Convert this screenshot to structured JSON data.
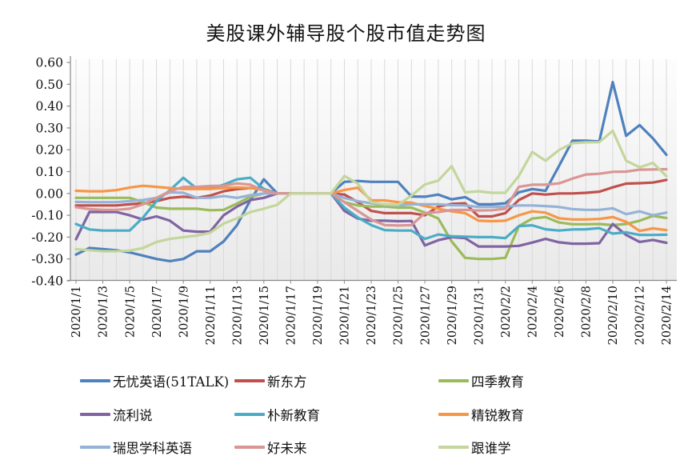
{
  "title": "美股课外辅导股个股市值走势图",
  "chart_data": {
    "type": "line",
    "title": "美股课外辅导股个股市值走势图",
    "xlabel": "",
    "ylabel": "",
    "ylim": [
      -0.4,
      0.6
    ],
    "y_tick_labels": [
      "0.60",
      "0.50",
      "0.40",
      "0.30",
      "0.20",
      "0.10",
      "0.00",
      "-0.10",
      "-0.20",
      "-0.30",
      "-0.40"
    ],
    "x_tick_labels": [
      "2020/1/1",
      "2020/1/3",
      "2020/1/5",
      "2020/1/7",
      "2020/1/9",
      "2020/1/11",
      "2020/1/13",
      "2020/1/15",
      "2020/1/17",
      "2020/1/19",
      "2020/1/21",
      "2020/1/23",
      "2020/1/25",
      "2020/1/27",
      "2020/1/29",
      "2020/1/31",
      "2020/2/2",
      "2020/2/4",
      "2020/2/6",
      "2020/2/8",
      "2020/2/10",
      "2020/2/12",
      "2020/2/14"
    ],
    "x": [
      "2020/1/1",
      "2020/1/2",
      "2020/1/3",
      "2020/1/4",
      "2020/1/5",
      "2020/1/6",
      "2020/1/7",
      "2020/1/8",
      "2020/1/9",
      "2020/1/10",
      "2020/1/11",
      "2020/1/12",
      "2020/1/13",
      "2020/1/14",
      "2020/1/15",
      "2020/1/16",
      "2020/1/17",
      "2020/1/18",
      "2020/1/19",
      "2020/1/20",
      "2020/1/21",
      "2020/1/22",
      "2020/1/23",
      "2020/1/24",
      "2020/1/25",
      "2020/1/26",
      "2020/1/27",
      "2020/1/28",
      "2020/1/29",
      "2020/1/30",
      "2020/1/31",
      "2020/2/1",
      "2020/2/2",
      "2020/2/3",
      "2020/2/4",
      "2020/2/5",
      "2020/2/6",
      "2020/2/7",
      "2020/2/8",
      "2020/2/9",
      "2020/2/10",
      "2020/2/11",
      "2020/2/12",
      "2020/2/13",
      "2020/2/14"
    ],
    "grid": "vertical-per-day",
    "legend_position": "bottom",
    "series": [
      {
        "name": "无忧英语(51TALK)",
        "color": "#4F81BD",
        "values": [
          -0.28,
          -0.25,
          -0.255,
          -0.26,
          -0.27,
          -0.285,
          -0.3,
          -0.31,
          -0.3,
          -0.265,
          -0.265,
          -0.22,
          -0.145,
          -0.03,
          0.065,
          0,
          0,
          0,
          0,
          0,
          0.053,
          0.057,
          0.053,
          0.053,
          0.053,
          -0.014,
          -0.015,
          -0.005,
          -0.027,
          -0.017,
          -0.05,
          -0.05,
          -0.045,
          0.005,
          0.02,
          0.012,
          0.126,
          0.242,
          0.242,
          0.238,
          0.51,
          0.264,
          0.313,
          0.252,
          0.177
        ]
      },
      {
        "name": "新东方",
        "color": "#C0504D",
        "values": [
          -0.055,
          -0.055,
          -0.055,
          -0.055,
          -0.05,
          -0.045,
          -0.035,
          -0.02,
          -0.015,
          -0.02,
          -0.01,
          0.01,
          0.02,
          0.025,
          0.02,
          0,
          0,
          0,
          0,
          0,
          -0.005,
          -0.04,
          -0.08,
          -0.09,
          -0.09,
          -0.09,
          -0.1,
          -0.06,
          -0.048,
          -0.045,
          -0.105,
          -0.105,
          -0.09,
          -0.03,
          0.0,
          -0.005,
          0.0,
          0.0,
          0.003,
          0.008,
          0.028,
          0.045,
          0.047,
          0.05,
          0.062
        ]
      },
      {
        "name": "四季教育",
        "color": "#9BBB59",
        "values": [
          -0.02,
          -0.02,
          -0.02,
          -0.02,
          -0.02,
          -0.04,
          -0.065,
          -0.07,
          -0.07,
          -0.07,
          -0.077,
          -0.075,
          -0.046,
          -0.015,
          0,
          0,
          0,
          0,
          0,
          0,
          -0.04,
          -0.055,
          -0.06,
          -0.06,
          -0.065,
          -0.065,
          -0.088,
          -0.115,
          -0.22,
          -0.295,
          -0.3,
          -0.3,
          -0.295,
          -0.15,
          -0.115,
          -0.108,
          -0.133,
          -0.141,
          -0.141,
          -0.14,
          -0.145,
          -0.14,
          -0.125,
          -0.103,
          -0.112
        ]
      },
      {
        "name": "流利说",
        "color": "#8064A2",
        "values": [
          -0.21,
          -0.085,
          -0.085,
          -0.085,
          -0.1,
          -0.12,
          -0.105,
          -0.125,
          -0.17,
          -0.175,
          -0.175,
          -0.1,
          -0.06,
          -0.03,
          -0.02,
          0,
          0,
          0,
          0,
          0,
          -0.08,
          -0.115,
          -0.125,
          -0.125,
          -0.127,
          -0.126,
          -0.238,
          -0.214,
          -0.2,
          -0.205,
          -0.243,
          -0.243,
          -0.243,
          -0.24,
          -0.225,
          -0.208,
          -0.224,
          -0.23,
          -0.23,
          -0.228,
          -0.14,
          -0.19,
          -0.222,
          -0.213,
          -0.226
        ]
      },
      {
        "name": "朴新教育",
        "color": "#4BACC6",
        "values": [
          -0.14,
          -0.165,
          -0.17,
          -0.17,
          -0.17,
          -0.11,
          -0.035,
          0.015,
          0.072,
          0.022,
          0.022,
          0.04,
          0.065,
          0.072,
          0.02,
          0,
          0,
          0,
          0,
          0,
          -0.065,
          -0.11,
          -0.145,
          -0.168,
          -0.17,
          -0.17,
          -0.208,
          -0.188,
          -0.196,
          -0.198,
          -0.2,
          -0.2,
          -0.205,
          -0.15,
          -0.146,
          -0.164,
          -0.17,
          -0.165,
          -0.164,
          -0.159,
          -0.184,
          -0.178,
          -0.19,
          -0.19,
          -0.189
        ]
      },
      {
        "name": "精锐教育",
        "color": "#F79646",
        "values": [
          0.012,
          0.01,
          0.01,
          0.015,
          0.027,
          0.035,
          0.03,
          0.025,
          0.02,
          0.02,
          0.02,
          0.025,
          0.028,
          0.025,
          0.015,
          0,
          0,
          0,
          0,
          0,
          0.016,
          0.026,
          -0.031,
          -0.032,
          -0.04,
          -0.042,
          -0.058,
          -0.07,
          -0.082,
          -0.09,
          -0.125,
          -0.127,
          -0.125,
          -0.1,
          -0.082,
          -0.088,
          -0.114,
          -0.119,
          -0.119,
          -0.117,
          -0.108,
          -0.13,
          -0.172,
          -0.16,
          -0.168
        ]
      },
      {
        "name": "瑞思学科英语",
        "color": "#95B3D7",
        "values": [
          -0.039,
          -0.04,
          -0.04,
          -0.04,
          -0.035,
          -0.03,
          -0.02,
          0.005,
          0.003,
          -0.02,
          -0.02,
          -0.012,
          -0.02,
          -0.008,
          0,
          0,
          0,
          0,
          0,
          0,
          -0.021,
          -0.035,
          -0.045,
          -0.052,
          -0.055,
          -0.05,
          -0.05,
          -0.05,
          -0.054,
          -0.055,
          -0.062,
          -0.062,
          -0.06,
          -0.055,
          -0.055,
          -0.058,
          -0.062,
          -0.072,
          -0.075,
          -0.075,
          -0.068,
          -0.095,
          -0.082,
          -0.1,
          -0.088
        ]
      },
      {
        "name": "好未来",
        "color": "#D99694",
        "values": [
          -0.063,
          -0.072,
          -0.075,
          -0.075,
          -0.07,
          -0.05,
          -0.02,
          0.01,
          0.03,
          0.03,
          0.034,
          0.035,
          0.046,
          0.04,
          0.012,
          0,
          0,
          0,
          0,
          0,
          -0.04,
          -0.08,
          -0.12,
          -0.145,
          -0.147,
          -0.145,
          -0.09,
          -0.085,
          -0.076,
          -0.075,
          -0.078,
          -0.077,
          -0.07,
          0.03,
          0.04,
          0.04,
          0.046,
          0.068,
          0.087,
          0.09,
          0.099,
          0.1,
          0.109,
          0.11,
          0.111
        ]
      },
      {
        "name": "跟谁学",
        "color": "#C3D69B",
        "values": [
          -0.255,
          -0.26,
          -0.265,
          -0.265,
          -0.262,
          -0.25,
          -0.222,
          -0.208,
          -0.2,
          -0.193,
          -0.18,
          -0.138,
          -0.114,
          -0.085,
          -0.07,
          -0.052,
          0,
          0,
          0,
          0,
          0.08,
          0.045,
          -0.04,
          -0.05,
          -0.052,
          -0.01,
          0.041,
          0.059,
          0.125,
          0.005,
          0.01,
          0.003,
          0.003,
          0.08,
          0.19,
          0.15,
          0.199,
          0.23,
          0.234,
          0.235,
          0.287,
          0.15,
          0.12,
          0.14,
          0.079
        ]
      }
    ]
  }
}
